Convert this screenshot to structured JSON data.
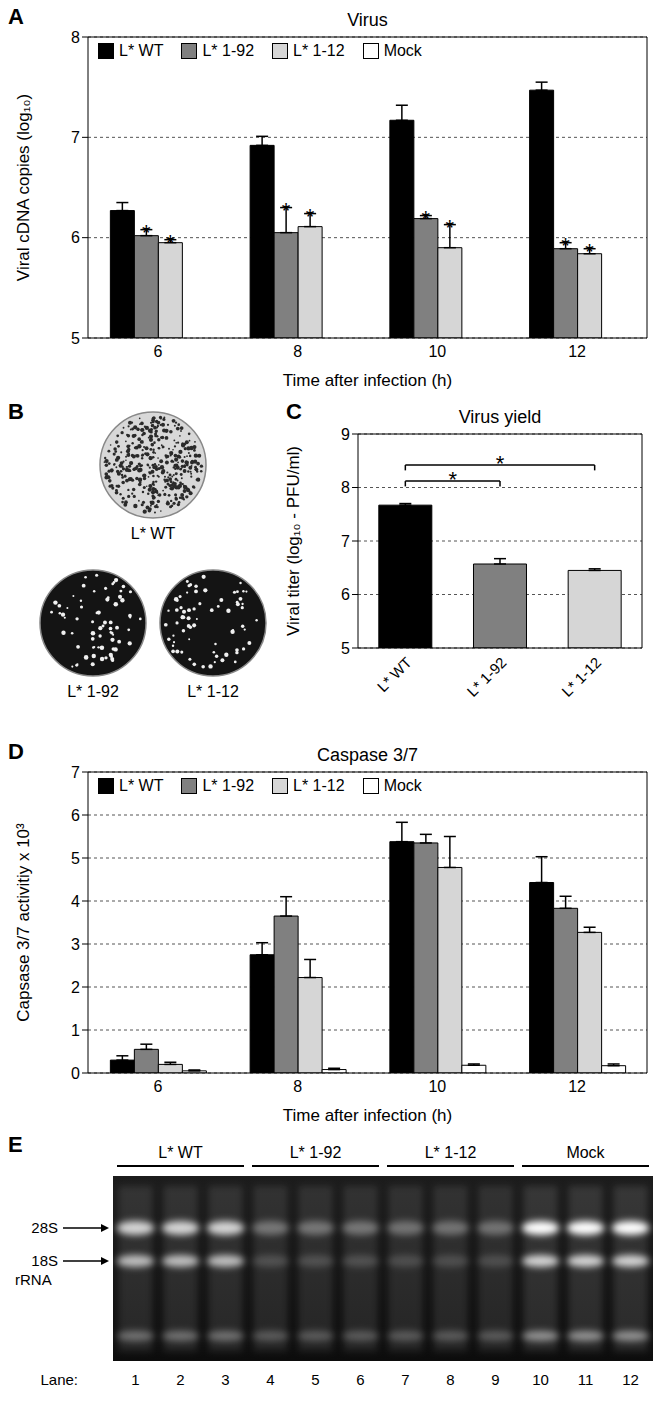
{
  "chart_data": [
    {
      "panel": "A",
      "type": "bar",
      "title": "Virus",
      "x_label": "Time after infection (h)",
      "y_label": "Viral cDNA copies (log₁₀)",
      "categories": [
        "6",
        "8",
        "10",
        "12"
      ],
      "series": [
        {
          "name": "L* WT",
          "color": "#000000",
          "values": [
            6.27,
            6.92,
            7.17,
            7.47
          ],
          "error": [
            0.08,
            0.09,
            0.15,
            0.08
          ]
        },
        {
          "name": "L* 1-92",
          "color": "#808080",
          "values": [
            6.02,
            6.05,
            6.19,
            5.89
          ],
          "error": [
            0.06,
            0.25,
            0.03,
            0.06
          ],
          "annotations": [
            "*",
            "*",
            "*",
            "*"
          ]
        },
        {
          "name": "L* 1-12",
          "color": "#d6d6d6",
          "values": [
            5.95,
            6.11,
            5.9,
            5.84
          ],
          "error": [
            0.03,
            0.13,
            0.23,
            0.05
          ],
          "annotations": [
            "*",
            "*",
            "*",
            "*"
          ]
        },
        {
          "name": "Mock",
          "color": "#ffffff",
          "values": [
            null,
            null,
            null,
            null
          ]
        }
      ],
      "ylim": [
        5,
        8
      ],
      "yticks": [
        5,
        6,
        7,
        8
      ],
      "grid": true,
      "legend": "top"
    },
    {
      "panel": "C",
      "type": "bar",
      "title": "Virus yield",
      "y_label": "Viral titer (log₁₀ - PFU/ml)",
      "categories": [
        "L* WT",
        "L* 1-92",
        "L* 1-12"
      ],
      "values": [
        7.67,
        6.57,
        6.45
      ],
      "error": [
        0.03,
        0.1,
        0.03
      ],
      "colors": [
        "#000000",
        "#808080",
        "#d6d6d6"
      ],
      "ylim": [
        5,
        9
      ],
      "yticks": [
        5,
        6,
        7,
        8,
        9
      ],
      "grid": true,
      "comparisons": [
        {
          "from": "L* WT",
          "to": "L* 1-92",
          "label": "*"
        },
        {
          "from": "L* WT",
          "to": "L* 1-12",
          "label": "*"
        }
      ]
    },
    {
      "panel": "D",
      "type": "bar",
      "title": "Caspase 3/7",
      "x_label": "Time after infection (h)",
      "y_label": "Capsase 3/7 activitiy x 10³",
      "categories": [
        "6",
        "8",
        "10",
        "12"
      ],
      "series": [
        {
          "name": "L* WT",
          "color": "#000000",
          "values": [
            0.3,
            2.75,
            5.38,
            4.43
          ],
          "error": [
            0.1,
            0.28,
            0.45,
            0.6
          ]
        },
        {
          "name": "L* 1-92",
          "color": "#808080",
          "values": [
            0.55,
            3.65,
            5.35,
            3.83
          ],
          "error": [
            0.12,
            0.45,
            0.2,
            0.28
          ]
        },
        {
          "name": "L* 1-12",
          "color": "#d6d6d6",
          "values": [
            0.2,
            2.22,
            4.78,
            3.27
          ],
          "error": [
            0.05,
            0.42,
            0.72,
            0.12
          ]
        },
        {
          "name": "Mock",
          "color": "#ffffff",
          "values": [
            0.05,
            0.08,
            0.18,
            0.17
          ],
          "error": [
            0.02,
            0.03,
            0.03,
            0.04
          ]
        }
      ],
      "ylim": [
        0,
        7
      ],
      "yticks": [
        0,
        1,
        2,
        3,
        4,
        5,
        6,
        7
      ],
      "grid": true,
      "legend": "top"
    }
  ],
  "plates": {
    "panel": "B",
    "labels": [
      "L* WT",
      "L* 1-92",
      "L* 1-12"
    ]
  },
  "gel": {
    "panel": "E",
    "groups": [
      "L* WT",
      "L* 1-92",
      "L* 1-12",
      "Mock"
    ],
    "band_labels": [
      "28S",
      "18S"
    ],
    "band_group_label": "rRNA",
    "lane_label": "Lane:",
    "lanes": [
      1,
      2,
      3,
      4,
      5,
      6,
      7,
      8,
      9,
      10,
      11,
      12
    ]
  }
}
